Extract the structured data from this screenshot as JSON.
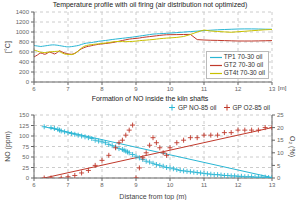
{
  "chart_data": [
    {
      "type": "line",
      "title": "Temperature profile with oil firing (air distribution not optimized)",
      "ylabel": "[°C]",
      "annotations": [
        "[m]"
      ],
      "x": [
        6.0,
        6.05,
        6.1,
        6.15,
        6.2,
        6.25,
        6.3,
        6.35,
        6.4,
        6.45,
        6.5,
        6.55,
        6.6,
        6.65,
        6.7,
        6.75,
        6.8,
        6.85,
        6.9,
        6.95,
        7.0,
        7.05,
        7.1,
        7.15,
        7.2,
        7.25,
        7.3,
        7.35,
        7.4,
        7.45,
        7.5,
        7.55,
        7.6,
        7.65,
        7.7,
        7.75,
        7.8,
        7.85,
        7.9,
        7.95,
        8.0,
        8.1,
        8.2,
        8.3,
        8.4,
        8.5,
        8.6,
        8.7,
        8.8,
        8.9,
        9.0,
        9.1,
        9.2,
        9.3,
        9.4,
        9.5,
        9.6,
        9.7,
        9.8,
        9.9,
        10.0,
        10.2,
        10.4,
        10.6,
        10.8,
        11.0,
        11.2,
        11.4,
        11.6,
        11.8,
        12.0,
        12.2,
        12.4,
        12.6,
        12.8,
        13.0
      ],
      "series": [
        {
          "name": "TP1 70-30 oil",
          "color": "#29b6d4",
          "values": [
            730,
            725,
            720,
            715,
            710,
            715,
            720,
            725,
            730,
            735,
            740,
            742,
            742,
            738,
            734,
            728,
            722,
            716,
            710,
            705,
            702,
            704,
            708,
            712,
            718,
            724,
            730,
            740,
            752,
            762,
            772,
            778,
            782,
            786,
            790,
            796,
            802,
            808,
            814,
            818,
            822,
            830,
            840,
            850,
            858,
            866,
            874,
            882,
            890,
            898,
            908,
            918,
            928,
            938,
            948,
            958,
            962,
            966,
            970,
            974,
            978,
            988,
            998,
            1008,
            1018,
            1028,
            1036,
            1044,
            1050,
            1055,
            1060,
            1062,
            1062,
            1060,
            1056,
            1055
          ]
        },
        {
          "name": "GT2 70-30 oil",
          "color": "#c0392b",
          "values": [
            500,
            520,
            540,
            565,
            580,
            570,
            555,
            560,
            580,
            600,
            590,
            575,
            560,
            575,
            600,
            625,
            610,
            595,
            580,
            570,
            562,
            558,
            555,
            560,
            575,
            595,
            620,
            645,
            665,
            680,
            695,
            706,
            714,
            720,
            728,
            736,
            742,
            748,
            754,
            758,
            762,
            770,
            778,
            788,
            800,
            815,
            830,
            845,
            858,
            866,
            872,
            880,
            892,
            900,
            908,
            916,
            924,
            932,
            940,
            945,
            946,
            948,
            950,
            952,
            848,
            840,
            835,
            832,
            828,
            824,
            820,
            820,
            820,
            822,
            825,
            828
          ]
        },
        {
          "name": "GT4t 70-30 oil",
          "color": "#c8c000",
          "values": [
            640,
            630,
            618,
            605,
            595,
            590,
            588,
            590,
            595,
            600,
            605,
            608,
            610,
            612,
            614,
            616,
            590,
            575,
            560,
            555,
            552,
            550,
            548,
            555,
            570,
            590,
            620,
            650,
            680,
            705,
            720,
            730,
            738,
            744,
            748,
            752,
            756,
            760,
            764,
            768,
            772,
            780,
            790,
            800,
            810,
            810,
            808,
            806,
            808,
            812,
            818,
            826,
            832,
            838,
            844,
            850,
            858,
            866,
            872,
            878,
            882,
            892,
            910,
            950,
            1000,
            1040,
            1020,
            1010,
            1002,
            995,
            1005,
            1015,
            1025,
            1035,
            1045,
            1050
          ]
        }
      ],
      "xlim": [
        6,
        13
      ],
      "ylim": [
        0,
        1400
      ],
      "xticks": [
        6,
        7,
        8,
        9,
        10,
        11,
        12,
        13
      ],
      "yticks": [
        0,
        200,
        400,
        600,
        800,
        1000,
        1200,
        1400
      ],
      "grid": true,
      "legend": "lower right"
    },
    {
      "type": "scatter",
      "title": "Formation of NO inside the kiln shafts",
      "xlabel": "Distance from top (m)",
      "ylabel": "NO (ppm)",
      "y2label": "O₂ (%)",
      "series": [
        {
          "name": "GP NO-85 oil",
          "type": "scatter",
          "marker": "plus",
          "color": "#29b6d4",
          "x": [
            6.3,
            6.5,
            6.6,
            6.7,
            6.75,
            6.8,
            6.9,
            7.0,
            7.1,
            7.2,
            7.3,
            7.4,
            7.5,
            7.6,
            7.7,
            7.8,
            7.9,
            8.0,
            8.1,
            8.2,
            8.3,
            8.4,
            8.5,
            8.6,
            8.65,
            8.7,
            8.75,
            8.8,
            8.9,
            9.0,
            9.1,
            9.2,
            9.3,
            9.4,
            9.5,
            9.6,
            9.7,
            9.8,
            9.9,
            10.0,
            10.1,
            10.2,
            10.3,
            10.4,
            10.5,
            10.6,
            10.7,
            10.8,
            10.9,
            11.0,
            11.1,
            11.2,
            11.3,
            11.4,
            11.5,
            11.6,
            11.7,
            11.8,
            11.9,
            12.0,
            12.1,
            12.2,
            12.3,
            12.4,
            12.5,
            12.6,
            12.7,
            12.8,
            12.9,
            13.0
          ],
          "values": [
            122,
            120,
            118,
            116,
            114,
            112,
            110,
            108,
            106,
            104,
            102,
            100,
            98,
            96,
            94,
            90,
            88,
            86,
            84,
            80,
            77,
            74,
            70,
            68,
            66,
            64,
            62,
            60,
            56,
            52,
            48,
            44,
            40,
            38,
            35,
            32,
            30,
            28,
            25,
            24,
            22,
            20,
            18,
            17,
            16,
            15,
            14,
            13,
            12,
            11,
            10,
            9,
            8,
            8,
            7,
            6,
            6,
            5,
            5,
            4,
            4,
            3,
            3,
            3,
            2,
            2,
            2,
            2,
            1,
            1
          ]
        },
        {
          "type": "line",
          "color": "#29b6d4",
          "x": [
            6.3,
            13.0
          ],
          "values": [
            122,
            1
          ]
        },
        {
          "name": "GP O2-85 oil",
          "type": "scatter",
          "marker": "plus",
          "color": "#c0392b",
          "axis": "y2",
          "x": [
            6.3,
            6.5,
            6.8,
            7.0,
            7.2,
            7.4,
            7.6,
            7.8,
            8.0,
            8.2,
            8.4,
            8.5,
            8.6,
            8.7,
            8.8,
            8.9,
            9.0,
            9.1,
            9.2,
            9.3,
            9.4,
            9.5,
            9.6,
            9.7,
            9.8,
            9.9,
            10.0,
            10.2,
            10.4,
            10.6,
            10.8,
            11.0,
            11.2,
            11.4,
            11.6,
            11.8,
            12.0,
            12.2,
            12.4,
            12.6,
            12.8,
            13.0
          ],
          "values": [
            0,
            0,
            0,
            0.5,
            1,
            2,
            3,
            5,
            7,
            9,
            12,
            14,
            15,
            17,
            19,
            21,
            0,
            4,
            8,
            10,
            13,
            16,
            14,
            12,
            10,
            9,
            12,
            14,
            15,
            16,
            16,
            17,
            17,
            17,
            18,
            18,
            19,
            19,
            19,
            19,
            20,
            20
          ]
        },
        {
          "type": "line",
          "color": "#c0392b",
          "axis": "y2",
          "x": [
            6.3,
            13.0
          ],
          "values": [
            0,
            20
          ]
        }
      ],
      "xlim": [
        6,
        13
      ],
      "ylim": [
        0,
        150
      ],
      "y2lim": [
        0,
        25
      ],
      "xticks": [
        6,
        7,
        8,
        9,
        10,
        11,
        12,
        13
      ],
      "yticks": [
        0,
        25,
        50,
        75,
        100,
        125,
        150
      ],
      "y2ticks": [
        0,
        5,
        10,
        15,
        20,
        25
      ],
      "grid": true,
      "legend": "upper right"
    }
  ]
}
